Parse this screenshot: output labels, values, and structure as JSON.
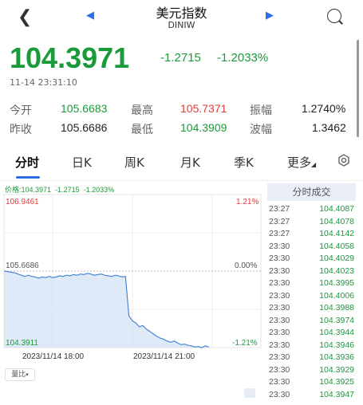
{
  "header": {
    "title": "美元指数",
    "code": "DINIW"
  },
  "quote": {
    "price": "104.3971",
    "change": "-1.2715",
    "change_pct": "-1.2033%",
    "timestamp": "11-14 23:31:10"
  },
  "stats": {
    "open_label": "今开",
    "open": "105.6683",
    "high_label": "最高",
    "high": "105.7371",
    "amplitude_label": "振幅",
    "amplitude": "1.2740%",
    "prev_close_label": "昨收",
    "prev_close": "105.6686",
    "low_label": "最低",
    "low": "104.3909",
    "wave_label": "波幅",
    "wave": "1.3462"
  },
  "tabs": [
    "分时",
    "日K",
    "周K",
    "月K",
    "季K",
    "更多"
  ],
  "chart_info": {
    "price_label": "价格:104.3971",
    "change": "-1.2715",
    "change_pct": "-1.2033%"
  },
  "chart_data": {
    "type": "line",
    "y_top_label": "106.9461",
    "y_mid_label": "105.6686",
    "y_bottom_label": "104.3911",
    "pct_top_label": "1.21%",
    "pct_mid_label": "0.00%",
    "pct_bottom_label": "-1.21%",
    "x_labels": [
      "2023/11/14 18:00",
      "2023/11/14 21:00"
    ],
    "ylim": [
      104.3911,
      106.9461
    ],
    "prev_close": 105.6686,
    "series": [
      {
        "values": [
          105.67,
          105.66,
          105.65,
          105.64,
          105.62,
          105.6,
          105.58,
          105.6,
          105.58,
          105.57,
          105.55,
          105.57,
          105.56,
          105.58,
          105.56,
          105.57,
          105.59,
          105.58,
          105.6,
          105.59,
          105.61,
          105.6,
          105.62,
          105.61,
          105.63,
          105.62,
          105.6,
          105.61,
          105.62,
          105.6,
          105.59,
          105.58,
          105.6,
          105.59,
          105.57,
          105.58,
          104.92,
          104.84,
          104.8,
          104.74,
          104.76,
          104.7,
          104.66,
          104.62,
          104.58,
          104.55,
          104.53,
          104.5,
          104.48,
          104.5,
          104.47,
          104.44,
          104.45,
          104.43,
          104.42,
          104.4,
          104.41,
          104.39,
          104.42,
          104.4
        ]
      }
    ]
  },
  "trades": {
    "header": "分时成交",
    "rows": [
      {
        "time": "23:27",
        "price": "104.4087"
      },
      {
        "time": "23:27",
        "price": "104.4078"
      },
      {
        "time": "23:27",
        "price": "104.4142"
      },
      {
        "time": "23:30",
        "price": "104.4058"
      },
      {
        "time": "23:30",
        "price": "104.4029"
      },
      {
        "time": "23:30",
        "price": "104.4023"
      },
      {
        "time": "23:30",
        "price": "104.3995"
      },
      {
        "time": "23:30",
        "price": "104.4006"
      },
      {
        "time": "23:30",
        "price": "104.3988"
      },
      {
        "time": "23:30",
        "price": "104.3974"
      },
      {
        "time": "23:30",
        "price": "104.3944"
      },
      {
        "time": "23:30",
        "price": "104.3946"
      },
      {
        "time": "23:30",
        "price": "104.3936"
      },
      {
        "time": "23:30",
        "price": "104.3929"
      },
      {
        "time": "23:30",
        "price": "104.3925"
      },
      {
        "time": "23:30",
        "price": "104.3947"
      }
    ]
  },
  "volume_button": "量比"
}
